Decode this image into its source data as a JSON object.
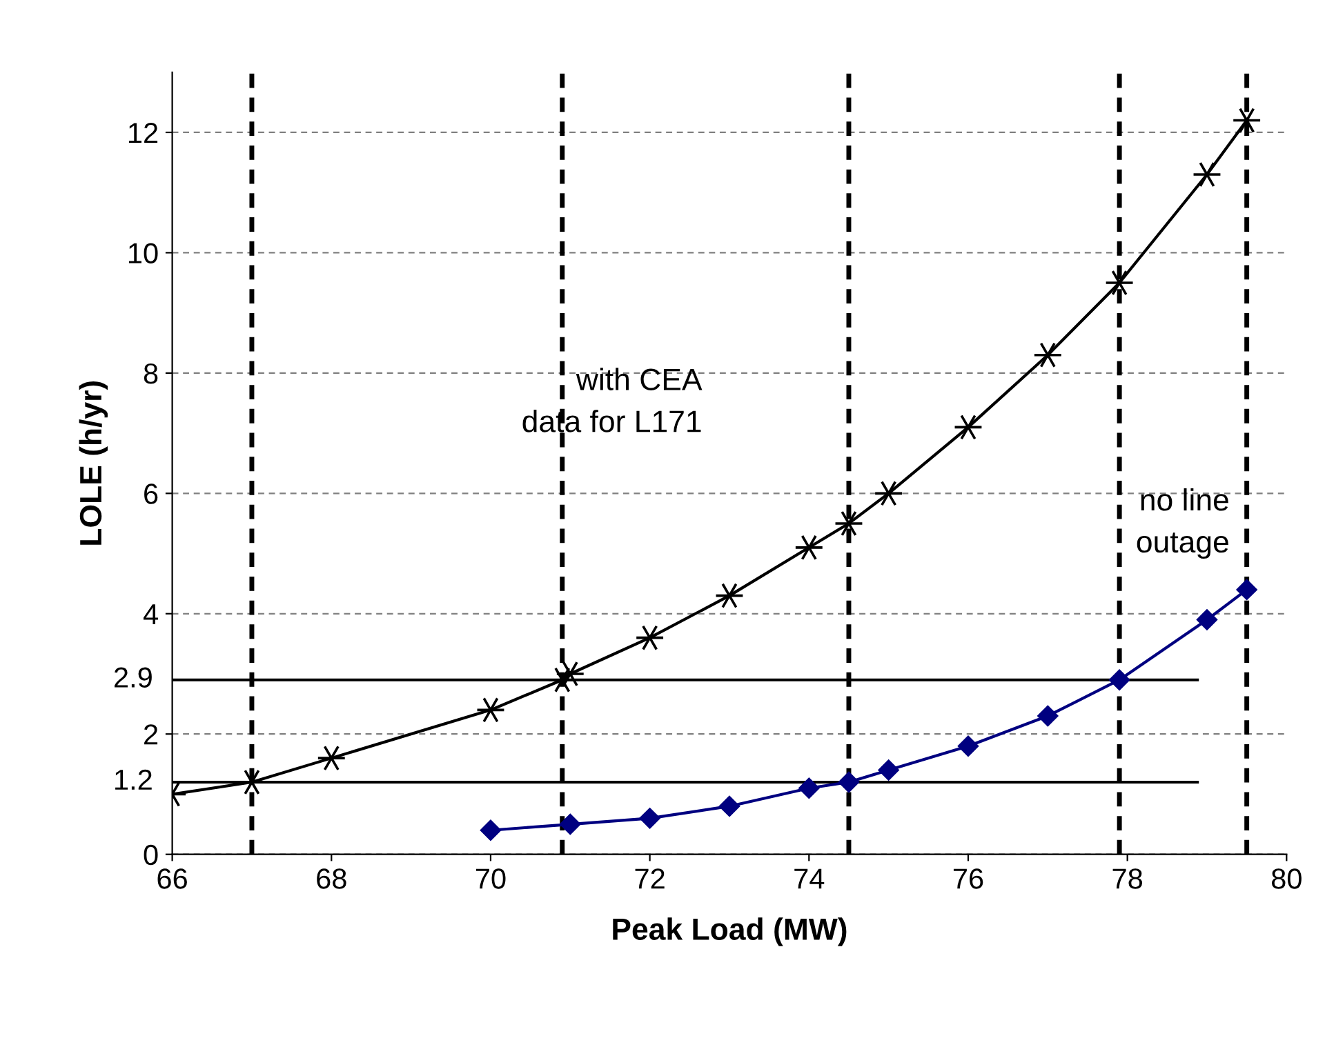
{
  "chart_data": {
    "type": "line",
    "xlabel": "Peak Load (MW)",
    "ylabel": "LOLE (h/yr)",
    "xlim": [
      66,
      80
    ],
    "xticks": [
      66,
      68,
      70,
      72,
      74,
      76,
      78,
      80
    ],
    "ylim": [
      0,
      13
    ],
    "yticks": [
      0,
      2,
      4,
      6,
      8,
      10,
      12
    ],
    "grid": "y",
    "legend": false,
    "series": [
      {
        "color": "#000000",
        "marker": "cross",
        "x": [
          66,
          67,
          68,
          70,
          70.9,
          71,
          72,
          73,
          74,
          74.5,
          75,
          76,
          77,
          77.9,
          79,
          79.5
        ],
        "values": [
          1.0,
          1.2,
          1.6,
          2.4,
          2.9,
          3.0,
          3.6,
          4.3,
          5.1,
          5.5,
          6.0,
          7.1,
          8.3,
          9.5,
          11.3,
          12.2
        ]
      },
      {
        "color": "#000080",
        "marker": "diamond",
        "x": [
          70,
          71,
          72,
          73,
          74,
          74.5,
          75,
          76,
          77,
          77.9,
          79,
          79.5
        ],
        "values": [
          0.4,
          0.5,
          0.6,
          0.8,
          1.1,
          1.2,
          1.4,
          1.8,
          2.3,
          2.9,
          3.9,
          4.4
        ]
      }
    ],
    "ref_lines": [
      {
        "axis": "y",
        "value": 1.2,
        "label": "1.2",
        "color": "#000000",
        "line_style": "solid"
      },
      {
        "axis": "y",
        "value": 2.9,
        "label": "2.9",
        "color": "#000000",
        "line_style": "solid"
      },
      {
        "axis": "x",
        "value": 67,
        "color": "#000000",
        "line_style": "dashed"
      },
      {
        "axis": "x",
        "value": 70.9,
        "color": "#000000",
        "line_style": "dashed"
      },
      {
        "axis": "x",
        "value": 74.5,
        "color": "#000000",
        "line_style": "dashed"
      },
      {
        "axis": "x",
        "value": 77.9,
        "color": "#000000",
        "line_style": "dashed"
      },
      {
        "axis": "x",
        "value": 79.5,
        "color": "#000000",
        "line_style": "dashed"
      }
    ],
    "annotations": [
      "with CEA\ndata for L171",
      "no line\noutage"
    ]
  }
}
